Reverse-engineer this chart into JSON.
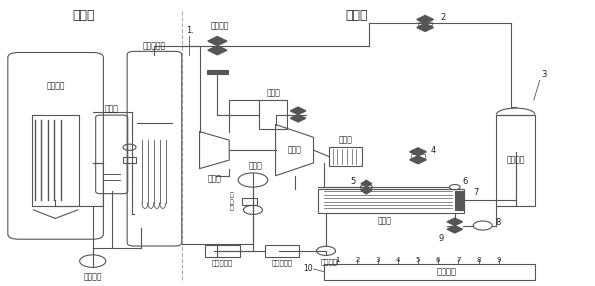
{
  "title_left": "一回路",
  "title_right": "二回路",
  "bg_color": "#ffffff",
  "border_color": "#555555",
  "text_color": "#222222",
  "control_numbers": [
    "1",
    "2",
    "3",
    "4",
    "5",
    "6",
    "7",
    "8",
    "9"
  ]
}
